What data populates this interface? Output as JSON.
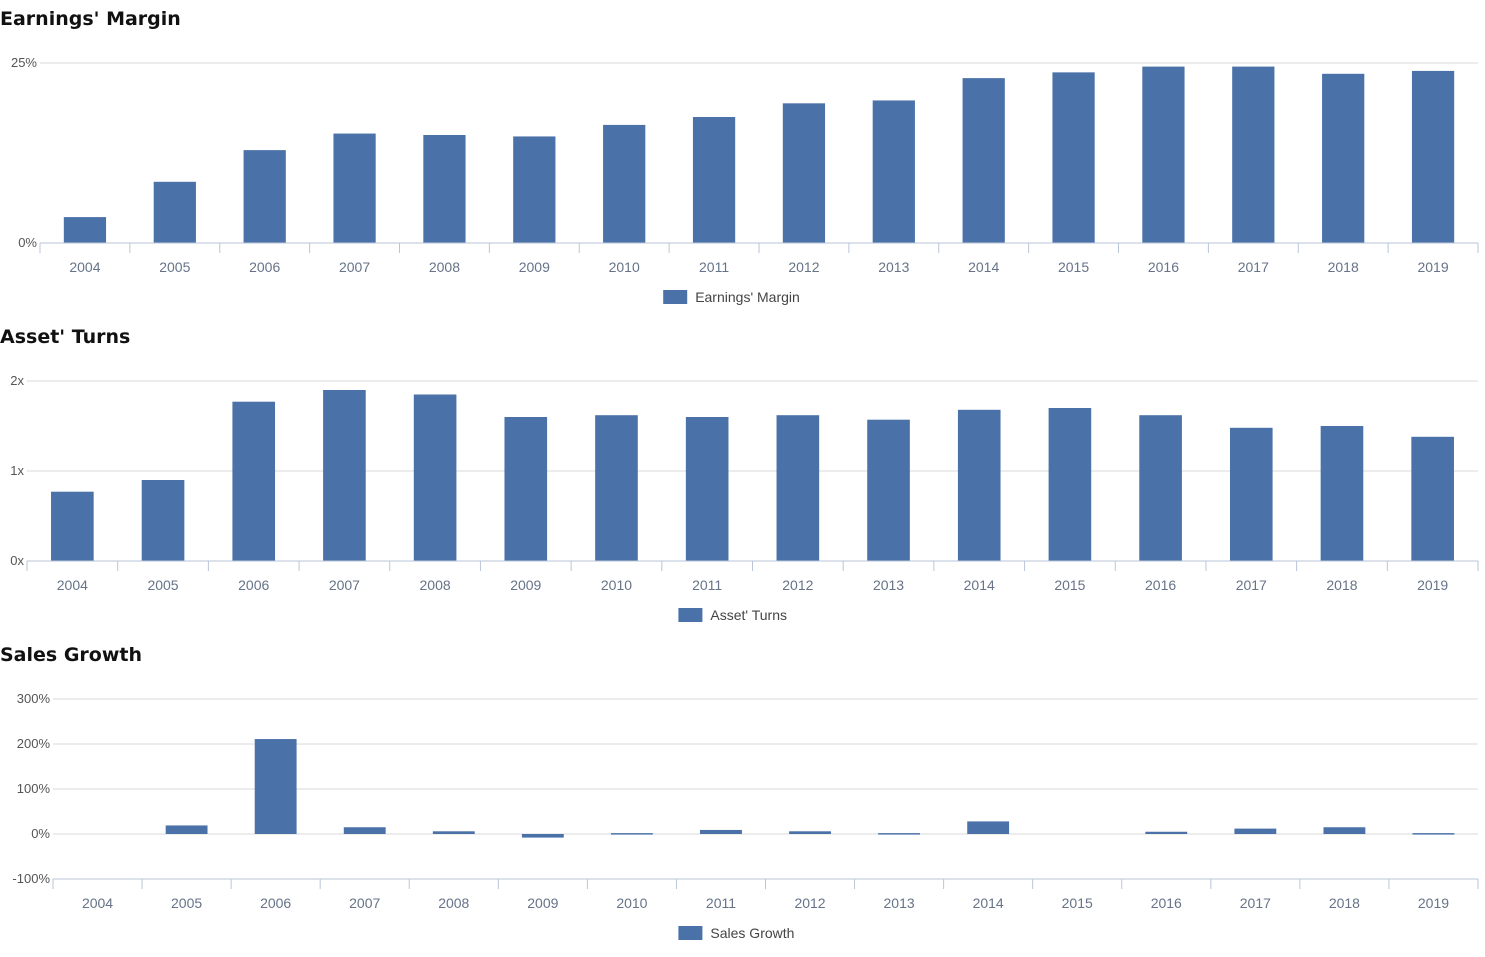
{
  "chart_data": [
    {
      "type": "bar",
      "title": "Earnings' Margin",
      "categories": [
        "2004",
        "2005",
        "2006",
        "2007",
        "2008",
        "2009",
        "2010",
        "2011",
        "2012",
        "2013",
        "2014",
        "2015",
        "2016",
        "2017",
        "2018",
        "2019"
      ],
      "series": [
        {
          "name": "Earnings' Margin",
          "values": [
            3.6,
            8.5,
            12.9,
            15.2,
            15.0,
            14.8,
            16.4,
            17.5,
            19.4,
            19.8,
            22.9,
            23.7,
            24.5,
            24.5,
            23.5,
            23.9
          ]
        }
      ],
      "y_ticks": [
        0,
        25
      ],
      "y_tick_labels": [
        "0%",
        "25%"
      ],
      "ylim": [
        0,
        25
      ],
      "grid": true,
      "legend_position": "bottom-center",
      "color": "#4a72a8"
    },
    {
      "type": "bar",
      "title": "Asset' Turns",
      "categories": [
        "2004",
        "2005",
        "2006",
        "2007",
        "2008",
        "2009",
        "2010",
        "2011",
        "2012",
        "2013",
        "2014",
        "2015",
        "2016",
        "2017",
        "2018",
        "2019"
      ],
      "series": [
        {
          "name": "Asset' Turns",
          "values": [
            0.77,
            0.9,
            1.77,
            1.9,
            1.85,
            1.6,
            1.62,
            1.6,
            1.62,
            1.57,
            1.68,
            1.7,
            1.62,
            1.48,
            1.5,
            1.38
          ]
        }
      ],
      "y_ticks": [
        0,
        1,
        2
      ],
      "y_tick_labels": [
        "0x",
        "1x",
        "2x"
      ],
      "ylim": [
        0,
        2
      ],
      "grid": true,
      "legend_position": "bottom-center",
      "color": "#4a72a8"
    },
    {
      "type": "bar",
      "title": "Sales Growth",
      "categories": [
        "2004",
        "2005",
        "2006",
        "2007",
        "2008",
        "2009",
        "2010",
        "2011",
        "2012",
        "2013",
        "2014",
        "2015",
        "2016",
        "2017",
        "2018",
        "2019"
      ],
      "series": [
        {
          "name": "Sales Growth",
          "values": [
            0,
            19,
            211,
            15,
            6,
            -8,
            2,
            9,
            6,
            2,
            28,
            0,
            5,
            12,
            15,
            2
          ]
        }
      ],
      "y_ticks": [
        -100,
        0,
        100,
        200,
        300
      ],
      "y_tick_labels": [
        "-100%",
        "0%",
        "100%",
        "200%",
        "300%"
      ],
      "ylim": [
        -100,
        300
      ],
      "grid": true,
      "legend_position": "bottom-center",
      "color": "#4a72a8"
    }
  ]
}
